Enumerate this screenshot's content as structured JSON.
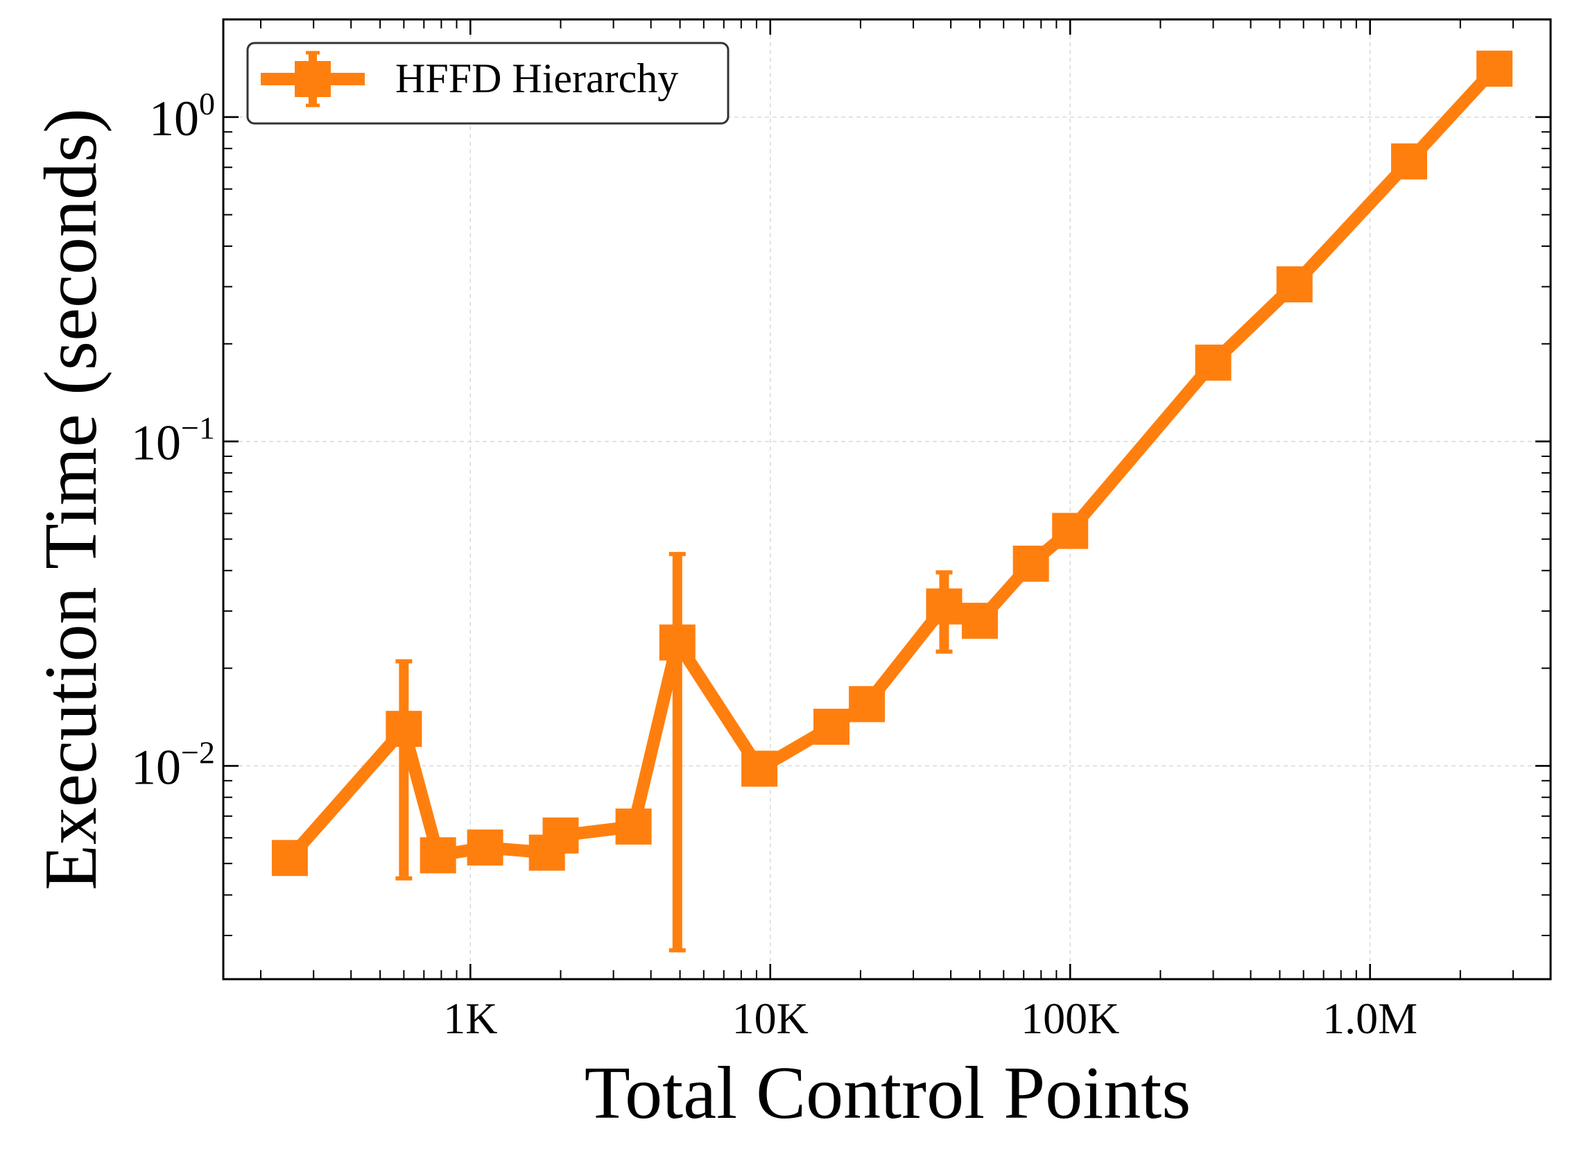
{
  "chart_data": {
    "type": "line",
    "title": "",
    "xlabel": "Total Control Points",
    "ylabel": "Execution Time (seconds)",
    "xscale": "log",
    "yscale": "log",
    "xlim": [
      150,
      4000000
    ],
    "ylim": [
      0.0022,
      2.0
    ],
    "grid": true,
    "legend_position": "top-left",
    "x_tick_labels": [
      {
        "value": 1000,
        "label": "1K"
      },
      {
        "value": 10000,
        "label": "10K"
      },
      {
        "value": 100000,
        "label": "100K"
      },
      {
        "value": 1000000,
        "label": "1.0M"
      }
    ],
    "y_tick_labels": [
      {
        "value": 0.01,
        "base": "10",
        "exp": "−2"
      },
      {
        "value": 0.1,
        "base": "10",
        "exp": "−1"
      },
      {
        "value": 1,
        "base": "10",
        "exp": "0"
      }
    ],
    "series": [
      {
        "name": "HFFD Hierarchy",
        "color": "#ff7f0e",
        "marker": "square",
        "x": [
          250,
          600,
          780,
          1120,
          1800,
          2000,
          3500,
          4900,
          9200,
          16000,
          21000,
          38000,
          50000,
          74000,
          100000,
          300000,
          560000,
          1350000,
          2600000
        ],
        "y": [
          0.0052,
          0.013,
          0.0053,
          0.0056,
          0.0054,
          0.0061,
          0.0065,
          0.024,
          0.0098,
          0.0132,
          0.0155,
          0.031,
          0.028,
          0.042,
          0.053,
          0.175,
          0.305,
          0.73,
          1.41
        ],
        "err_low": [
          null,
          0.0045,
          null,
          null,
          null,
          null,
          null,
          0.0027,
          null,
          null,
          null,
          0.0225,
          null,
          null,
          null,
          null,
          null,
          null,
          null
        ],
        "err_high": [
          null,
          0.021,
          null,
          null,
          null,
          null,
          null,
          0.045,
          null,
          null,
          null,
          0.0395,
          null,
          null,
          null,
          null,
          null,
          null,
          null
        ]
      }
    ]
  }
}
